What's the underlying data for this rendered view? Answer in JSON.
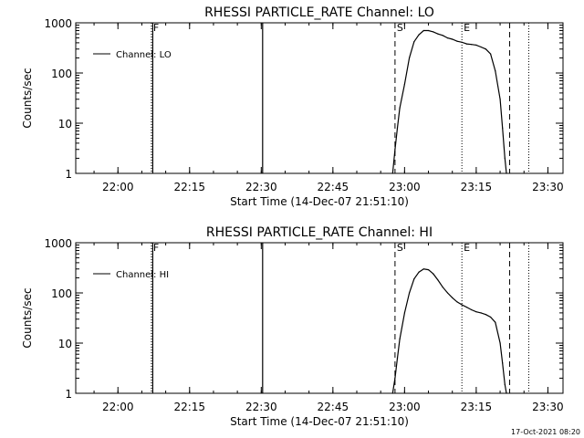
{
  "chart_data": [
    {
      "type": "line",
      "title": "RHESSI PARTICLE_RATE Channel: LO",
      "xlabel": "Start Time (14-Dec-07 21:51:10)",
      "ylabel": "Counts/sec",
      "y_scale": "log",
      "ylim": [
        1,
        1000
      ],
      "x_ticks": [
        "22:00",
        "22:15",
        "22:30",
        "22:45",
        "23:00",
        "23:15",
        "23:30"
      ],
      "y_ticks": [
        "1",
        "10",
        "100",
        "1000"
      ],
      "legend": {
        "placement": "top-left",
        "entries": [
          "Channel: LO"
        ]
      },
      "grid": false,
      "markers": [
        {
          "label": "F",
          "time": "22:07",
          "style": "dotted"
        },
        {
          "label": "S",
          "time": "22:58",
          "style": "dashed"
        },
        {
          "label": "E",
          "time": "23:12",
          "style": "dotted"
        },
        {
          "label": "",
          "time": "23:22",
          "style": "dashed"
        },
        {
          "label": "",
          "time": "23:26",
          "style": "dotted"
        }
      ],
      "spikes": [
        "22:07",
        "22:30"
      ],
      "series": [
        {
          "name": "Channel: LO",
          "points": [
            [
              "22:57:30",
              1
            ],
            [
              "22:58:00",
              3
            ],
            [
              "22:58:30",
              8
            ],
            [
              "22:59:00",
              20
            ],
            [
              "23:00:00",
              60
            ],
            [
              "23:01:00",
              200
            ],
            [
              "23:02:00",
              420
            ],
            [
              "23:03:00",
              580
            ],
            [
              "23:04:00",
              700
            ],
            [
              "23:05:00",
              700
            ],
            [
              "23:06:00",
              660
            ],
            [
              "23:07:00",
              600
            ],
            [
              "23:08:00",
              560
            ],
            [
              "23:09:00",
              500
            ],
            [
              "23:10:00",
              470
            ],
            [
              "23:11:00",
              430
            ],
            [
              "23:12:00",
              410
            ],
            [
              "23:13:00",
              380
            ],
            [
              "23:14:00",
              370
            ],
            [
              "23:15:00",
              360
            ],
            [
              "23:16:00",
              330
            ],
            [
              "23:17:00",
              300
            ],
            [
              "23:18:00",
              240
            ],
            [
              "23:19:00",
              110
            ],
            [
              "23:20:00",
              30
            ],
            [
              "23:20:30",
              8
            ],
            [
              "23:21:00",
              2
            ],
            [
              "23:21:20",
              1
            ]
          ]
        }
      ]
    },
    {
      "type": "line",
      "title": "RHESSI PARTICLE_RATE Channel: HI",
      "xlabel": "Start Time (14-Dec-07 21:51:10)",
      "ylabel": "Counts/sec",
      "y_scale": "log",
      "ylim": [
        1,
        1000
      ],
      "x_ticks": [
        "22:00",
        "22:15",
        "22:30",
        "22:45",
        "23:00",
        "23:15",
        "23:30"
      ],
      "y_ticks": [
        "1",
        "10",
        "100",
        "1000"
      ],
      "legend": {
        "placement": "top-left",
        "entries": [
          "Channel: HI"
        ]
      },
      "grid": false,
      "markers": [
        {
          "label": "F",
          "time": "22:07",
          "style": "dotted"
        },
        {
          "label": "S",
          "time": "22:58",
          "style": "dashed"
        },
        {
          "label": "E",
          "time": "23:12",
          "style": "dotted"
        },
        {
          "label": "",
          "time": "23:22",
          "style": "dashed"
        },
        {
          "label": "",
          "time": "23:26",
          "style": "dotted"
        }
      ],
      "spikes": [
        "22:07",
        "22:30"
      ],
      "series": [
        {
          "name": "Channel: HI",
          "points": [
            [
              "22:57:30",
              1
            ],
            [
              "22:58:00",
              2
            ],
            [
              "22:58:30",
              5
            ],
            [
              "22:59:00",
              12
            ],
            [
              "23:00:00",
              40
            ],
            [
              "23:01:00",
              100
            ],
            [
              "23:02:00",
              190
            ],
            [
              "23:03:00",
              260
            ],
            [
              "23:04:00",
              300
            ],
            [
              "23:05:00",
              290
            ],
            [
              "23:06:00",
              240
            ],
            [
              "23:07:00",
              180
            ],
            [
              "23:08:00",
              130
            ],
            [
              "23:09:00",
              100
            ],
            [
              "23:10:00",
              80
            ],
            [
              "23:11:00",
              66
            ],
            [
              "23:12:00",
              58
            ],
            [
              "23:13:00",
              52
            ],
            [
              "23:14:00",
              46
            ],
            [
              "23:15:00",
              42
            ],
            [
              "23:16:00",
              40
            ],
            [
              "23:17:00",
              37
            ],
            [
              "23:18:00",
              33
            ],
            [
              "23:19:00",
              26
            ],
            [
              "23:20:00",
              10
            ],
            [
              "23:20:30",
              4
            ],
            [
              "23:21:00",
              1.5
            ],
            [
              "23:21:20",
              1
            ]
          ]
        }
      ]
    }
  ],
  "footer": {
    "timestamp": "17-Oct-2021 08:20"
  }
}
